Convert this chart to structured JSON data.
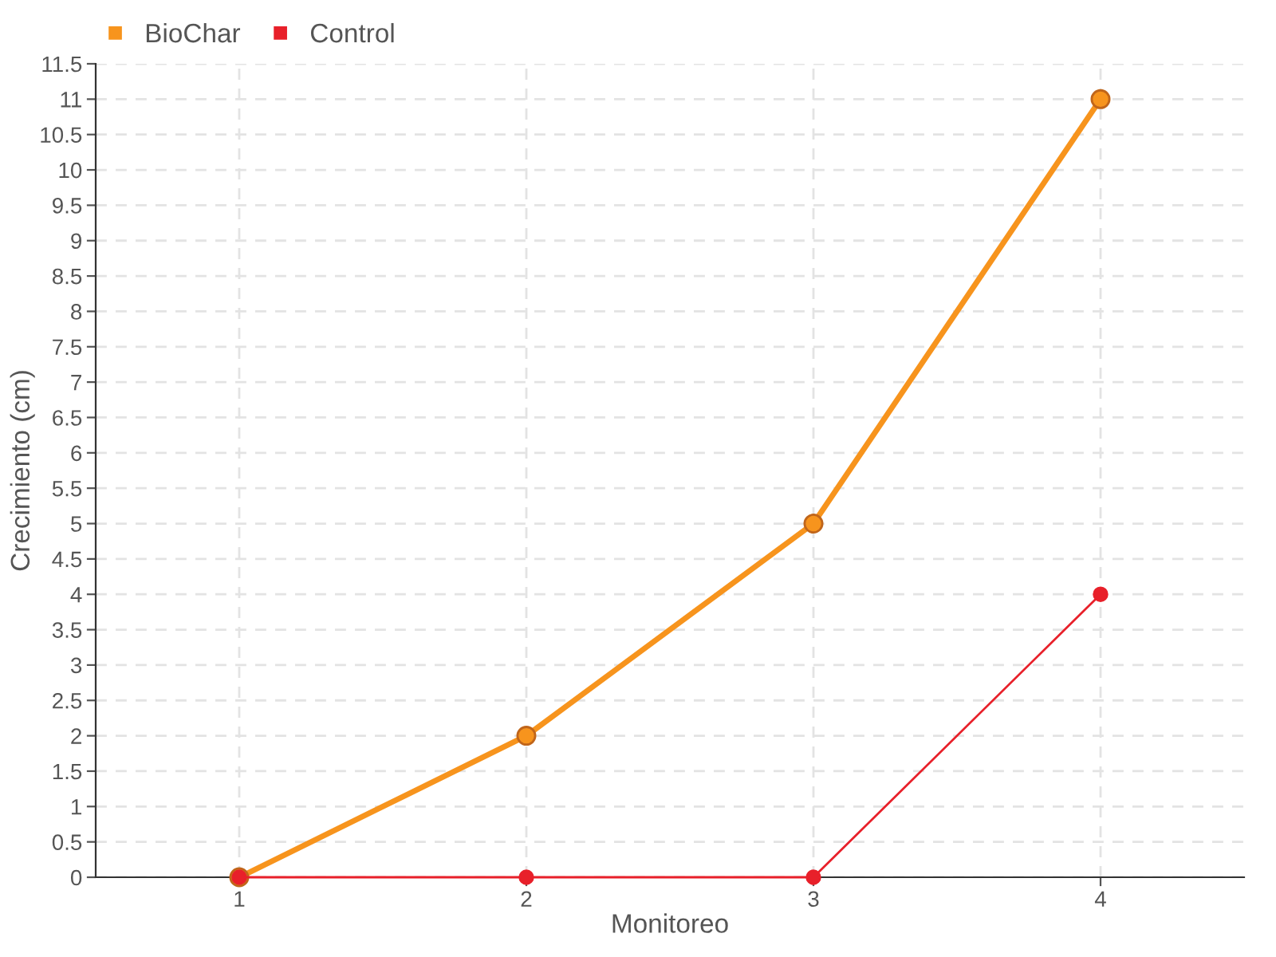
{
  "chart_data": {
    "type": "line",
    "xlabel": "Monitoreo",
    "ylabel": "Crecimiento (cm)",
    "x": [
      1,
      2,
      3,
      4
    ],
    "series": [
      {
        "name": "BioChar",
        "color": "#f7941d",
        "values": [
          0,
          2,
          5,
          11
        ]
      },
      {
        "name": "Control",
        "color": "#e8202a",
        "values": [
          0,
          0,
          0,
          4
        ]
      }
    ],
    "xlim": [
      0.5,
      4.5
    ],
    "xticks": [
      1,
      2,
      3,
      4
    ],
    "ylim": [
      0,
      11.5
    ],
    "yticks": [
      0,
      0.5,
      1,
      1.5,
      2,
      2.5,
      3,
      3.5,
      4,
      4.5,
      5,
      5.5,
      6,
      6.5,
      7,
      7.5,
      8,
      8.5,
      9,
      9.5,
      10,
      10.5,
      11,
      11.5
    ],
    "grid": true,
    "legend": "top left",
    "marker": "circle",
    "line_style": "solid"
  }
}
